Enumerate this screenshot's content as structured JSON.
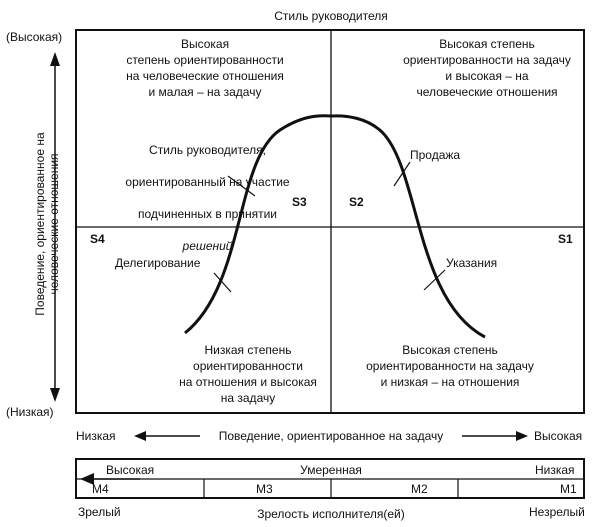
{
  "title": "Стиль руководителя",
  "y_axis": {
    "high": "(Высокая)",
    "low": "(Низкая)",
    "label_line1": "Поведение, ориентированное на",
    "label_line2": "человеческие отношения"
  },
  "x_axis": {
    "low": "Низкая",
    "label": "Поведение, ориентированное на задачу",
    "high": "Высокая"
  },
  "quadrants": {
    "top_left": "Высокая\nстепень ориентированности\nна человеческие отношения\nи малая – на задачу",
    "top_right": "Высокая степень\nориентированности на задачу\nи высокая – на\nчеловеческие отношения",
    "bottom_left": "Низкая степень\nориентированности\nна отношения и высокая\nна задачу",
    "bottom_right": "Высокая степень\nориентированности на задачу\nи низкая – на отношения"
  },
  "annotations": {
    "participation_line1": "Стиль руководителя,",
    "participation_line2": "ориентированный на участие",
    "participation_line3": "подчиненных в принятии",
    "participation_line4": "решений",
    "selling": "Продажа",
    "delegating": "Делегирование",
    "telling": "Указания"
  },
  "styles": {
    "s1": "S1",
    "s2": "S2",
    "s3": "S3",
    "s4": "S4"
  },
  "maturity": {
    "high": "Высокая",
    "moderate": "Умеренная",
    "low": "Низкая",
    "levels": [
      "M4",
      "M3",
      "M2",
      "M1"
    ],
    "mature": "Зрелый",
    "label": "Зрелость исполнителя(ей)",
    "immature": "Незрелый"
  }
}
